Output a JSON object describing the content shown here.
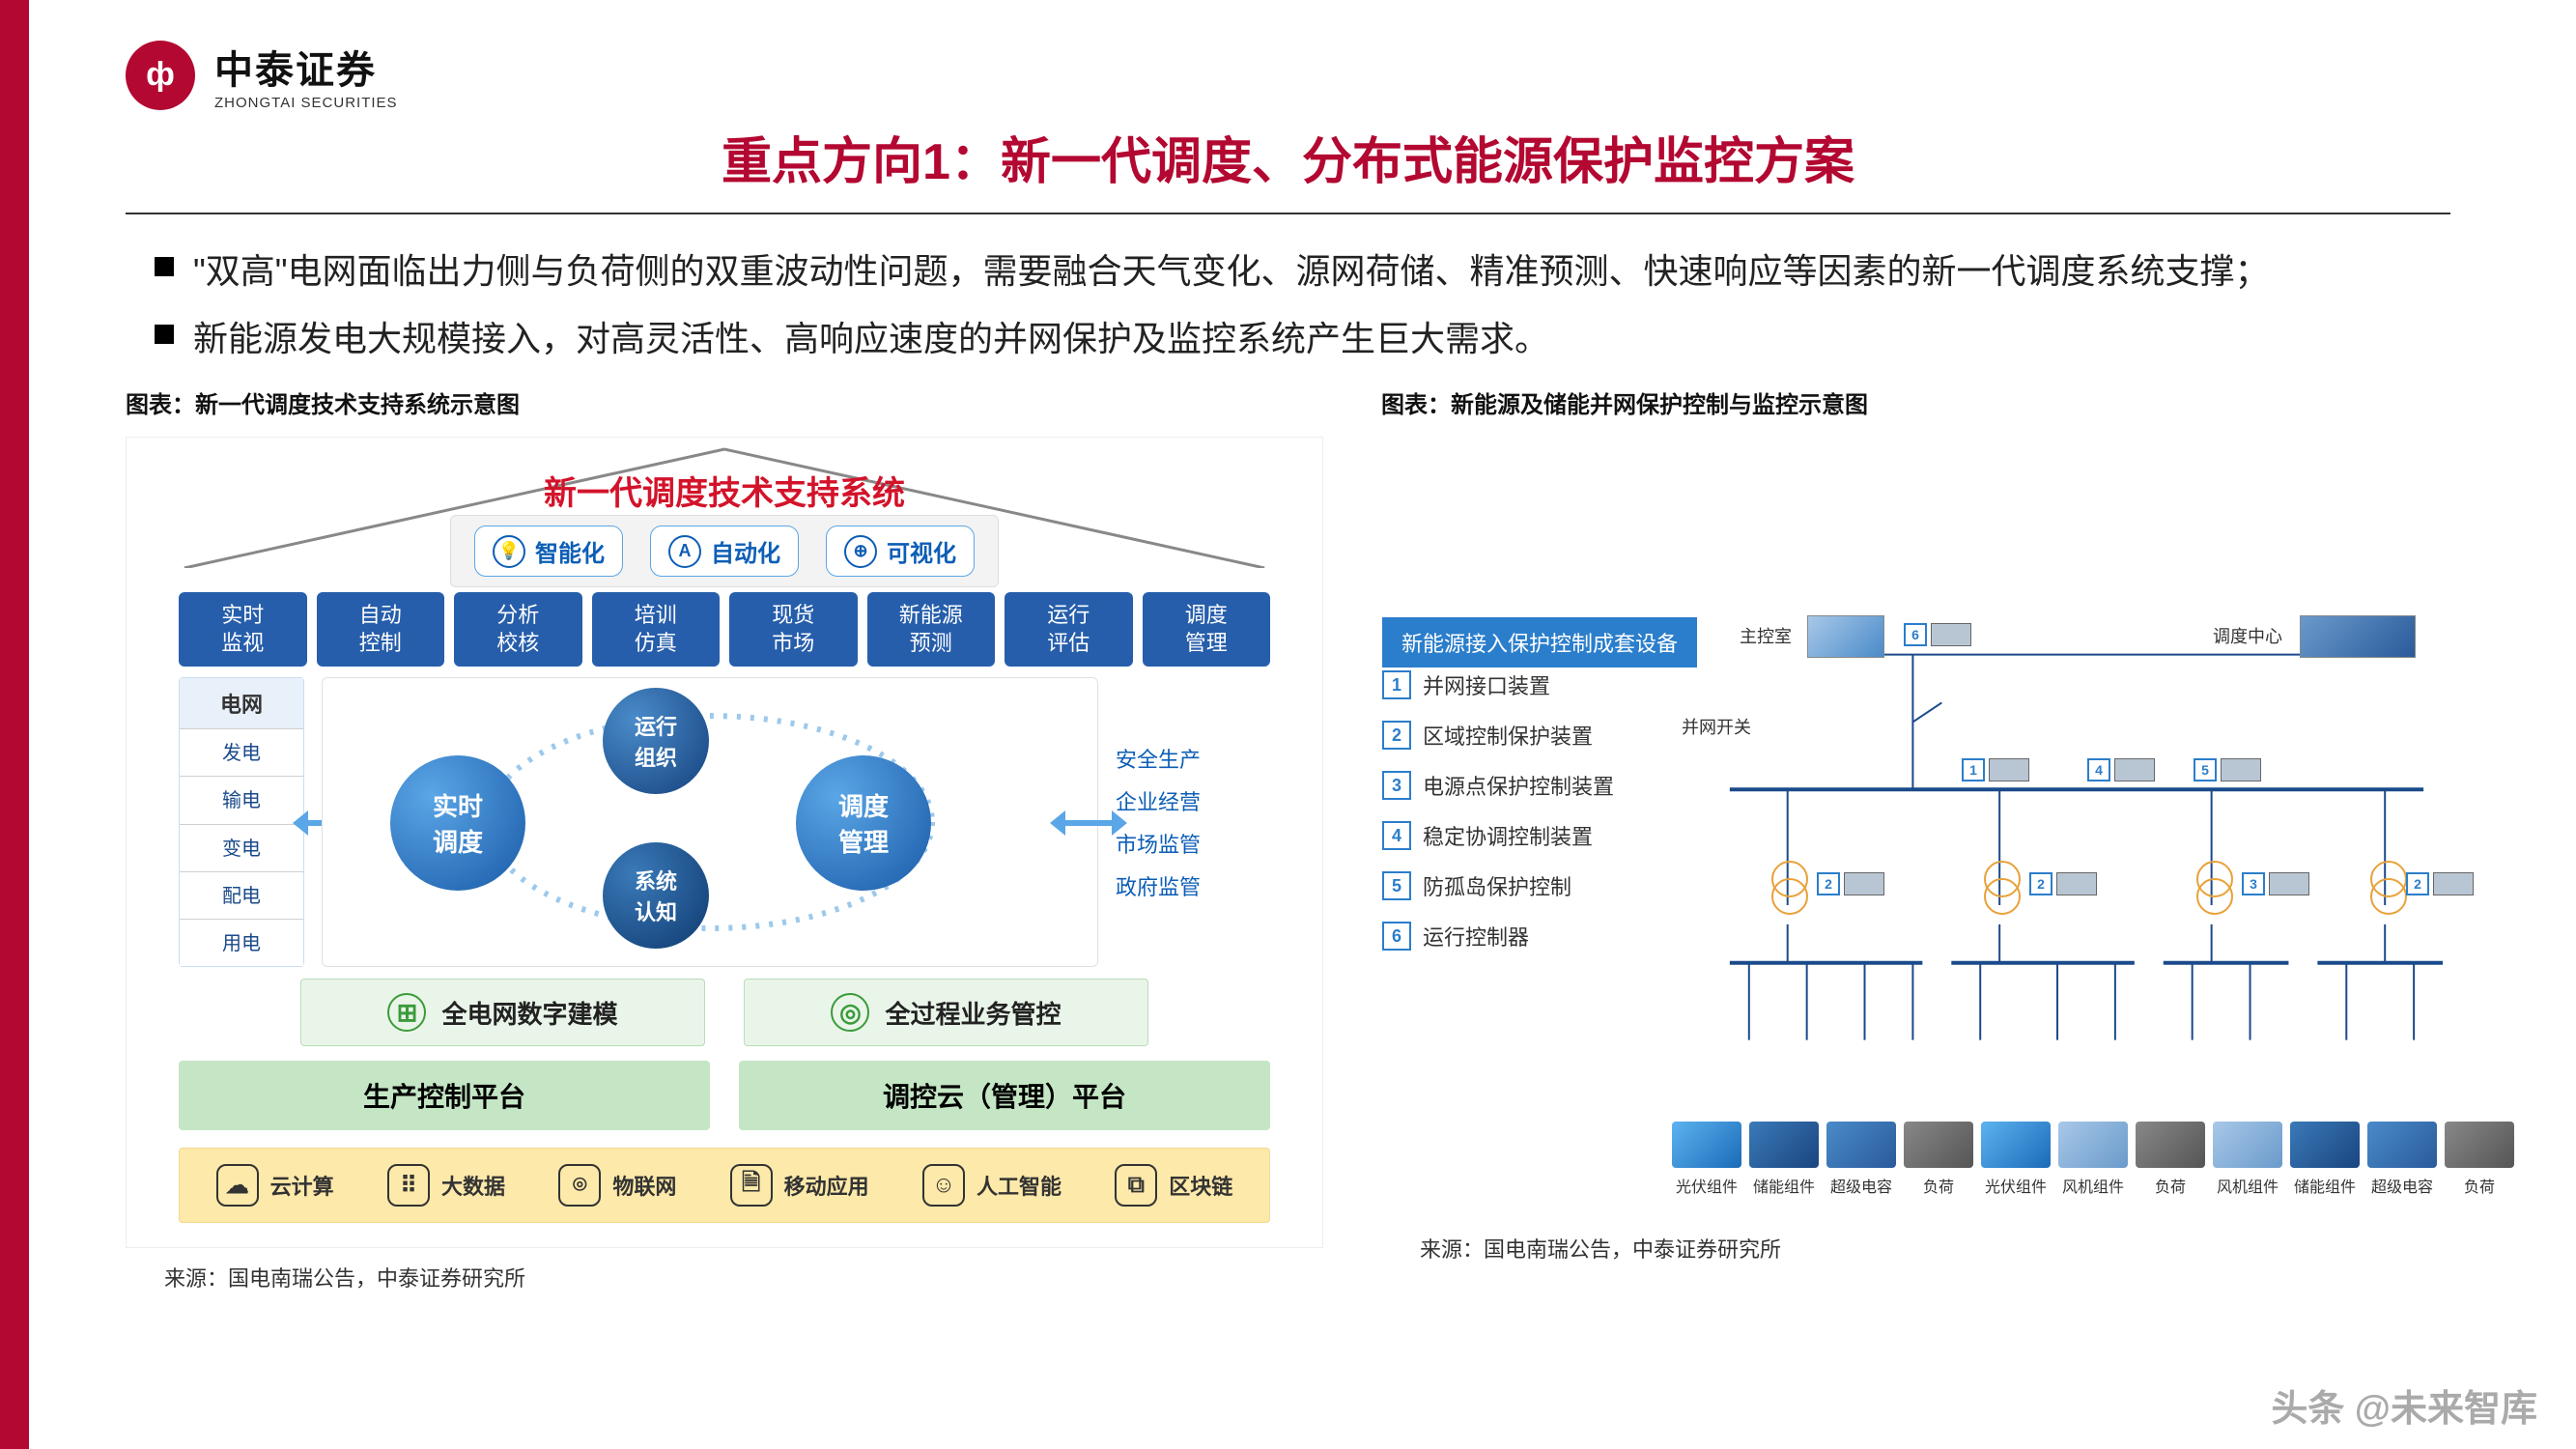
{
  "brand": {
    "cn": "中泰证券",
    "en": "ZHONGTAI SECURITIES",
    "mark": "ф"
  },
  "title": "重点方向1：新一代调度、分布式能源保护监控方案",
  "bullets": [
    "\"双高\"电网面临出力侧与负荷侧的双重波动性问题，需要融合天气变化、源网荷储、精准预测、快速响应等因素的新一代调度系统支撑；",
    "新能源发电大规模接入，对高灵活性、高响应速度的并网保护及监控系统产生巨大需求。"
  ],
  "left": {
    "caption": "图表：新一代调度技术支持系统示意图",
    "diagram_title": "新一代调度技术支持系统",
    "chips": [
      {
        "icon": "💡",
        "label": "智能化"
      },
      {
        "icon": "A",
        "label": "自动化"
      },
      {
        "icon": "⊕",
        "label": "可视化"
      }
    ],
    "top_row": [
      "实时\n监视",
      "自动\n控制",
      "分析\n校核",
      "培训\n仿真",
      "现货\n市场",
      "新能源\n预测",
      "运行\n评估",
      "调度\n管理"
    ],
    "left_list_head": "电网",
    "left_list": [
      "发电",
      "输电",
      "变电",
      "配电",
      "用电"
    ],
    "bubbles": {
      "left": {
        "label": "实时\n调度",
        "color": "#2b7ecb"
      },
      "top": {
        "label": "运行\n组织",
        "color": "#1a5aa8"
      },
      "right": {
        "label": "调度\n管理",
        "color": "#2b7ecb"
      },
      "bottom": {
        "label": "系统\n认知",
        "color": "#1a4580"
      }
    },
    "right_list": [
      "安全生产",
      "企业经营",
      "市场监管",
      "政府监管"
    ],
    "mid_row": [
      {
        "icon": "⊞",
        "label": "全电网数字建模"
      },
      {
        "icon": "◎",
        "label": "全过程业务管控"
      }
    ],
    "platforms": [
      "生产控制平台",
      "调控云（管理）平台"
    ],
    "bottom_row": [
      {
        "icon": "☁",
        "label": "云计算"
      },
      {
        "icon": "⠿",
        "label": "大数据"
      },
      {
        "icon": "⌾",
        "label": "物联网"
      },
      {
        "icon": "🗎",
        "label": "移动应用"
      },
      {
        "icon": "☺",
        "label": "人工智能"
      },
      {
        "icon": "⧉",
        "label": "区块链"
      }
    ],
    "source": "来源：国电南瑞公告，中泰证券研究所"
  },
  "right": {
    "caption": "图表：新能源及储能并网保护控制与监控示意图",
    "header": "新能源接入保护控制成套设备",
    "list": [
      {
        "n": "1",
        "label": "并网接口装置"
      },
      {
        "n": "2",
        "label": "区域控制保护装置"
      },
      {
        "n": "3",
        "label": "电源点保护控制装置"
      },
      {
        "n": "4",
        "label": "稳定协调控制装置"
      },
      {
        "n": "5",
        "label": "防孤岛保护控制"
      },
      {
        "n": "6",
        "label": "运行控制器"
      }
    ],
    "top_nodes": {
      "left_label": "主控室",
      "left_num": "6",
      "right_label": "调度中心"
    },
    "switch_label": "并网开关",
    "bus_devices_top": [
      [
        "1"
      ],
      [
        "4"
      ],
      [
        "5"
      ]
    ],
    "bus_devices_mid": [
      [
        "2"
      ],
      [
        "2"
      ],
      [
        "3"
      ],
      [
        "2"
      ]
    ],
    "components_bottom": [
      {
        "type": "solar",
        "label": "光伏组件"
      },
      {
        "type": "batt",
        "label": "储能组件"
      },
      {
        "type": "cap",
        "label": "超级电容"
      },
      {
        "type": "load",
        "label": "负荷"
      },
      {
        "type": "solar",
        "label": "光伏组件"
      },
      {
        "type": "wind",
        "label": "风机组件"
      },
      {
        "type": "load",
        "label": "负荷"
      },
      {
        "type": "wind",
        "label": "风机组件"
      },
      {
        "type": "batt",
        "label": "储能组件"
      },
      {
        "type": "cap",
        "label": "超级电容"
      },
      {
        "type": "load",
        "label": "负荷"
      }
    ],
    "source": "来源：国电南瑞公告，中泰证券研究所",
    "colors": {
      "blue": "#2b7ecb",
      "darkblue": "#1a4580",
      "line": "#1a4a8a",
      "orange": "#e8a23a"
    }
  },
  "watermark": "头条 @未来智库"
}
